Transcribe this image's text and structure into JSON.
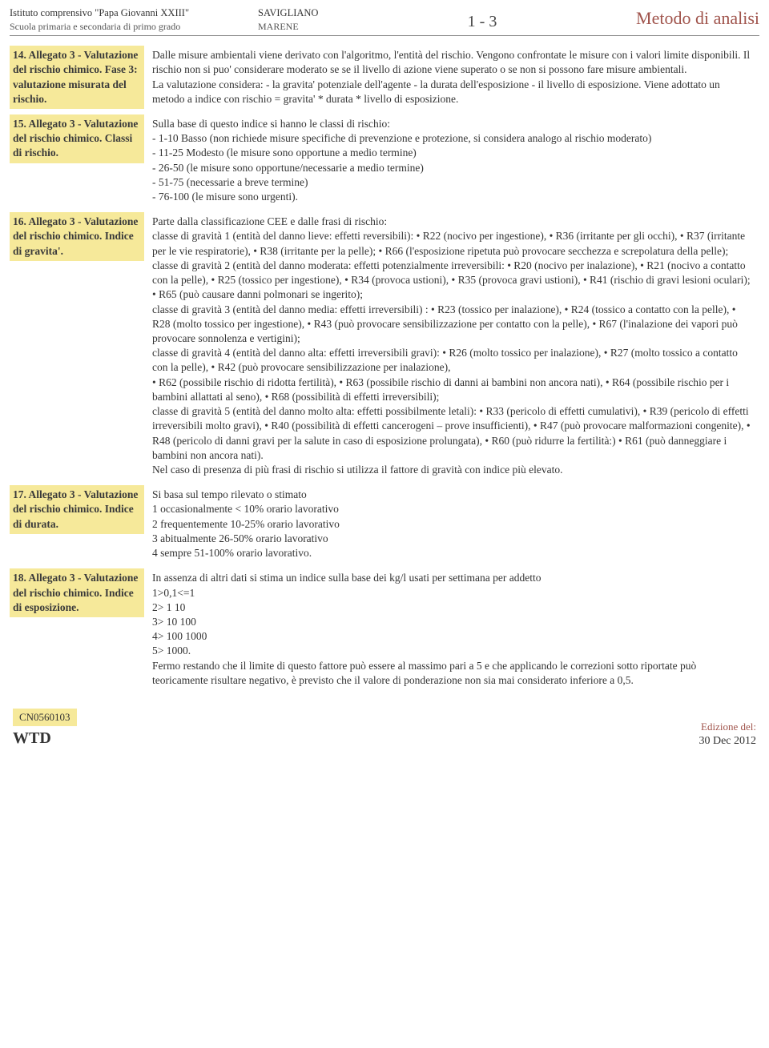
{
  "header": {
    "institute": "Istituto comprensivo \"Papa Giovanni XXIII\"",
    "school": "Scuola primaria e secondaria di primo grado",
    "city": "SAVIGLIANO",
    "district": "MARENE",
    "page": "1 - 3",
    "title": "Metodo di analisi"
  },
  "rows": [
    {
      "term": "14. Allegato 3 - Valutazione del rischio chimico. Fase 3: valutazione misurata del rischio.",
      "desc": "Dalle misure ambientali viene derivato con l'algoritmo, l'entità del rischio. Vengono confrontate le misure con i valori limite disponibili. Il rischio non si puo' considerare moderato se se il livello di azione viene superato o se non si possono fare misure ambientali.\nLa valutazione considera: - la gravita' potenziale dell'agente - la durata dell'esposizione - il livello di esposizione. Viene adottato un metodo a indice con rischio = gravita' * durata * livello di esposizione."
    },
    {
      "term": "15. Allegato 3 - Valutazione del rischio chimico. Classi di rischio.",
      "desc": "Sulla base di questo indice si hanno le classi di rischio:\n- 1-10 Basso  (non richiede misure specifiche di prevenzione e protezione, si considera analogo al rischio moderato)\n- 11-25 Modesto (le misure sono opportune a medio termine)\n- 26-50 (le misure sono opportune/necessarie a medio termine)\n- 51-75 (necessarie a breve termine)\n- 76-100 (le misure sono urgenti)."
    },
    {
      "term": "16. Allegato 3 - Valutazione del rischio chimico. Indice di gravita'.",
      "desc": "Parte dalla classificazione CEE e dalle frasi di rischio:\n classe di gravità 1 (entità del danno lieve: effetti reversibili): • R22 (nocivo per ingestione),  • R36 (irritante per gli occhi),  • R37 (irritante per le vie respiratorie),  • R38 (irritante per la pelle);  • R66 (l'esposizione ripetuta può provocare secchezza e screpolatura della pelle);\nclasse di gravità 2 (entità del danno moderata: effetti potenzialmente irreversibili:  • R20 (nocivo per inalazione),  • R21 (nocivo a contatto con la pelle),  • R25 (tossico per ingestione), • R34 (provoca ustioni),  • R35 (provoca gravi ustioni), • R41 (rischio di gravi lesioni oculari);  • R65 (può causare danni polmonari se ingerito);\nclasse di gravità 3 (entità del danno media: effetti irreversibili) :  • R23 (tossico per inalazione),  • R24 (tossico a contatto con la pelle),  • R28 (molto tossico per ingestione), • R43 (può provocare sensibilizzazione per contatto con la pelle),  • R67 (l'inalazione dei vapori può provocare sonnolenza e vertigini);\nclasse di gravità 4 (entità del danno alta: effetti irreversibili gravi):  • R26 (molto tossico per inalazione),  • R27 (molto tossico a contatto con la pelle),  • R42 (può provocare sensibilizzazione per inalazione),\n• R62 (possibile rischio di ridotta fertilità), • R63 (possibile rischio di danni ai bambini non ancora nati),  • R64 (possibile rischio per i bambini allattati al seno),  • R68 (possibilità di effetti irreversibili);\nclasse di gravità 5 (entità del danno molto alta: effetti possibilmente letali):  • R33 (pericolo di effetti cumulativi),  • R39 (pericolo di effetti irreversibili molto gravi),  • R40 (possibilità di effetti cancerogeni – prove insufficienti),  • R47 (può provocare malformazioni congenite),  • R48 (pericolo di danni gravi per la salute in caso di esposizione prolungata),  • R60 (può ridurre la fertilità:)  • R61 (può danneggiare i bambini non ancora nati).\nNel caso di presenza di più frasi di rischio si utilizza il fattore di gravità con indice più elevato."
    },
    {
      "term": "17. Allegato 3 - Valutazione del rischio chimico. Indice di durata.",
      "desc": "Si basa sul tempo rilevato o stimato\n1 occasionalmente < 10%   orario lavorativo\n2 frequentemente 10-25% orario lavorativo\n3 abitualmente 26-50% orario lavorativo\n4 sempre 51-100% orario lavorativo."
    },
    {
      "term": "18. Allegato 3 - Valutazione del rischio chimico. Indice di esposizione.",
      "desc": "In assenza di altri dati si stima un indice sulla base dei kg/l usati per settimana per addetto\n1>0,1<=1\n2> 1   10\n3> 10   100\n4> 100    1000\n5> 1000.\nFermo restando che il limite di questo fattore può essere al massimo pari a 5 e che applicando le correzioni sotto riportate può teoricamente risultare negativo, è previsto che il valore di ponderazione non sia mai considerato inferiore a 0,5."
    }
  ],
  "footer": {
    "code": "CN0560103",
    "wtd": "WTD",
    "edition_label": "Edizione del:",
    "date": "30 Dec 2012"
  },
  "colors": {
    "accent": "#a0544c",
    "highlight": "#f6e99a",
    "text": "#333333",
    "muted": "#555555"
  }
}
